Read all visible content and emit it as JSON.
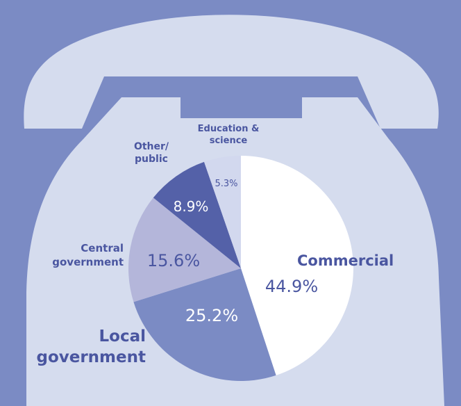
{
  "chart_data": {
    "type": "pie",
    "categories": [
      "Commercial",
      "Local\ngovernment",
      "Central\ngovernment",
      "Other/\npublic",
      "Education &\nscience"
    ],
    "values": [
      44.9,
      25.2,
      15.6,
      8.9,
      5.3
    ],
    "value_labels": [
      "44.9%",
      "25.2%",
      "15.6%",
      "8.9%",
      "5.3%"
    ],
    "colors": [
      "#ffffff",
      "#7b8bc4",
      "#b4b6da",
      "#5461a8",
      "#d2d8ee"
    ]
  }
}
